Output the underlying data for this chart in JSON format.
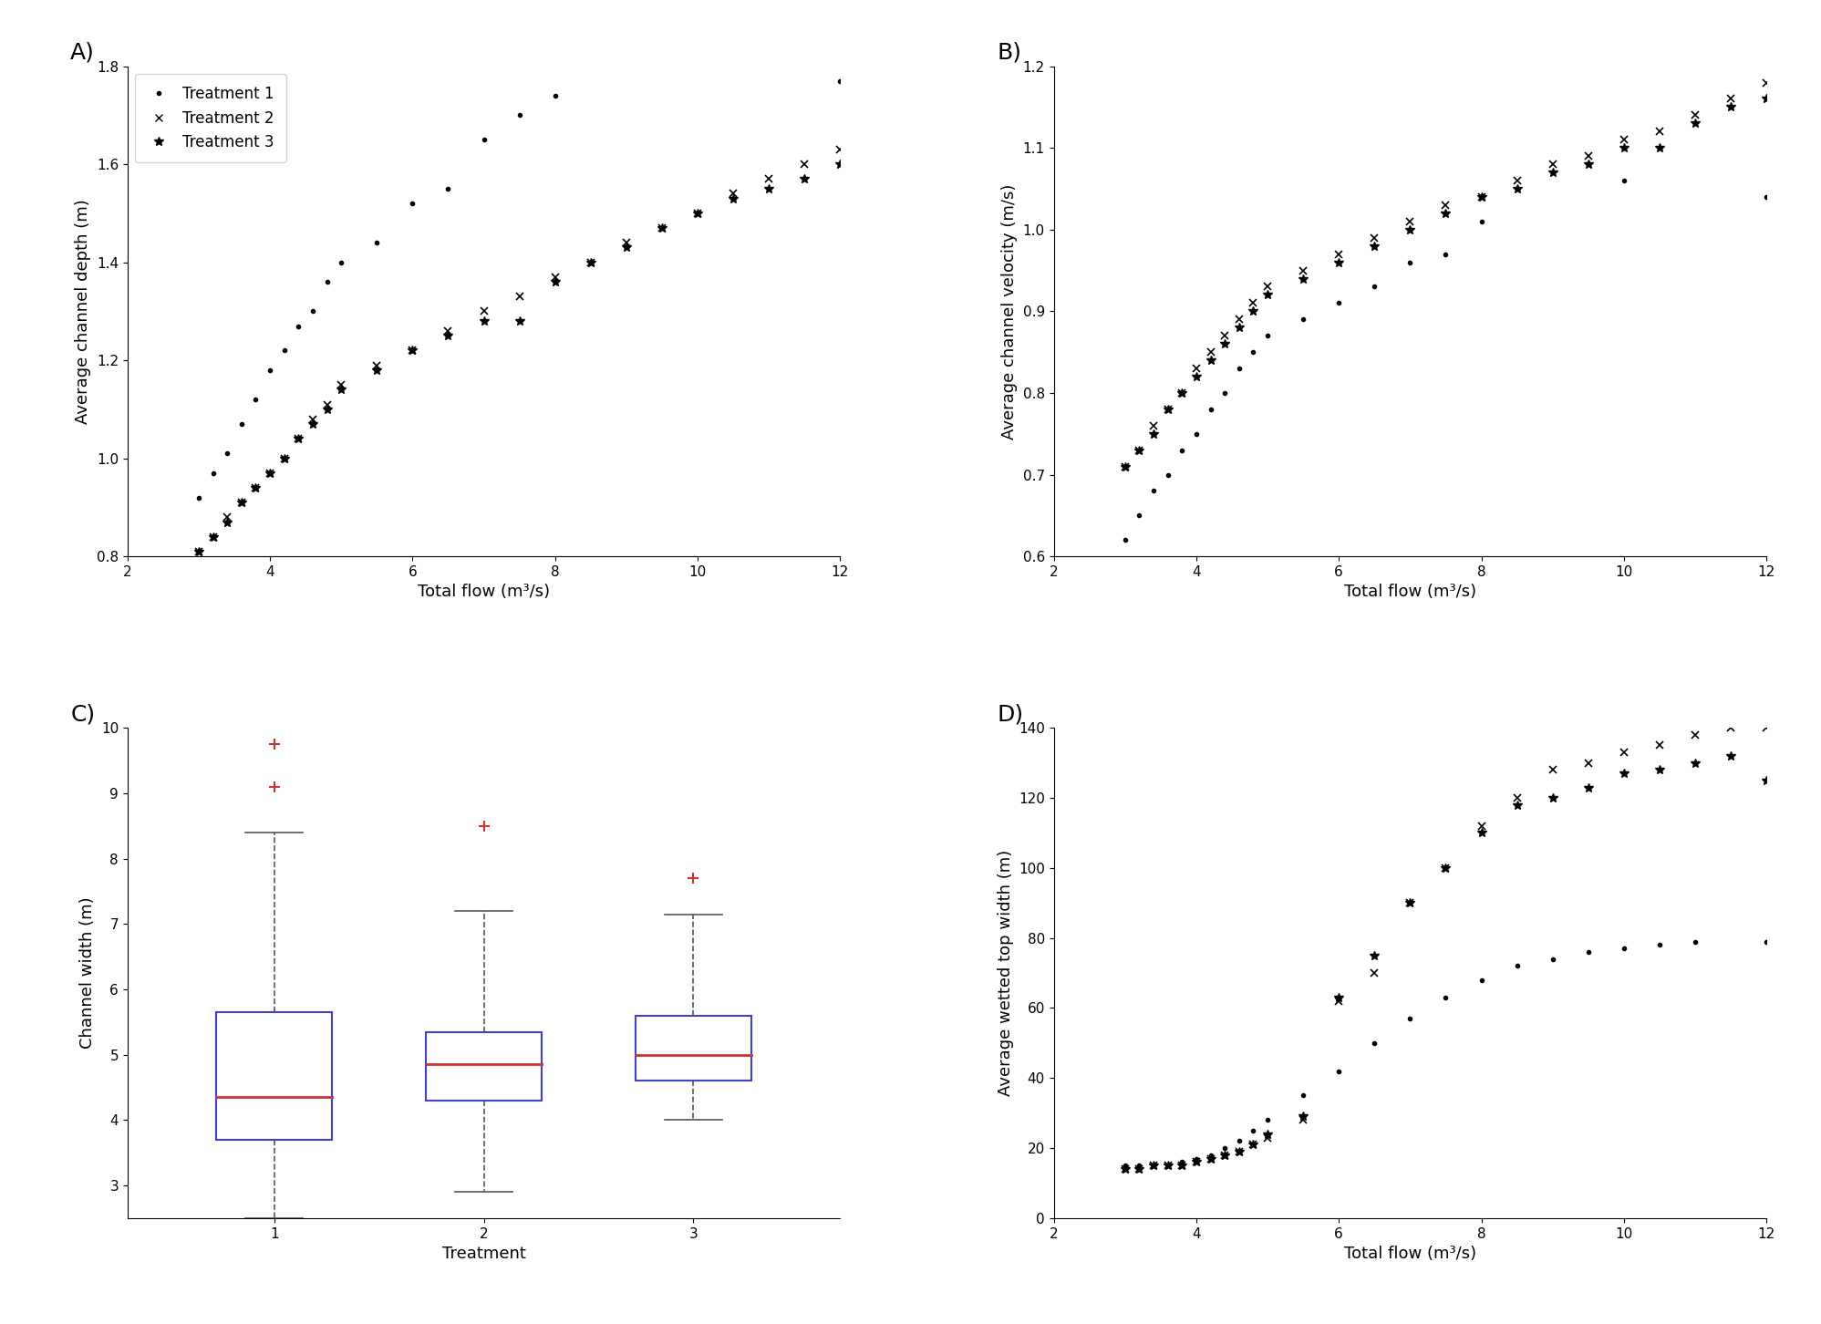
{
  "panel_labels": [
    "A)",
    "B)",
    "C)",
    "D)"
  ],
  "flow_t23": [
    3.0,
    3.2,
    3.4,
    3.6,
    3.8,
    4.0,
    4.2,
    4.4,
    4.6,
    4.8,
    5.0,
    5.5,
    6.0,
    6.5,
    7.0,
    7.5,
    8.0,
    8.5,
    9.0,
    9.5,
    10.0,
    10.5,
    11.0,
    11.5,
    12.0
  ],
  "depth_t1": [
    0.92,
    0.97,
    1.01,
    1.07,
    1.12,
    1.18,
    1.22,
    1.27,
    1.3,
    1.36,
    1.4,
    1.44,
    1.52,
    1.55,
    1.65,
    1.7,
    1.74,
    1.77
  ],
  "depth_t1_x": [
    3.0,
    3.2,
    3.4,
    3.6,
    3.8,
    4.0,
    4.2,
    4.4,
    4.6,
    4.8,
    5.0,
    5.5,
    6.0,
    6.5,
    7.0,
    7.5,
    8.0,
    12.0
  ],
  "depth_t2": [
    0.81,
    0.84,
    0.88,
    0.91,
    0.94,
    0.97,
    1.0,
    1.04,
    1.08,
    1.11,
    1.15,
    1.19,
    1.22,
    1.26,
    1.3,
    1.33,
    1.37,
    1.4,
    1.44,
    1.47,
    1.5,
    1.54,
    1.57,
    1.6,
    1.63
  ],
  "depth_t3": [
    0.81,
    0.84,
    0.87,
    0.91,
    0.94,
    0.97,
    1.0,
    1.04,
    1.07,
    1.1,
    1.14,
    1.18,
    1.22,
    1.25,
    1.28,
    1.28,
    1.36,
    1.4,
    1.43,
    1.47,
    1.5,
    1.53,
    1.55,
    1.57,
    1.6
  ],
  "vel_t1": [
    0.62,
    0.65,
    0.68,
    0.7,
    0.73,
    0.75,
    0.78,
    0.8,
    0.83,
    0.85,
    0.87,
    0.89,
    0.91,
    0.93,
    0.96,
    0.97,
    1.01,
    1.06,
    1.04
  ],
  "vel_t1_x": [
    3.0,
    3.2,
    3.4,
    3.6,
    3.8,
    4.0,
    4.2,
    4.4,
    4.6,
    4.8,
    5.0,
    5.5,
    6.0,
    6.5,
    7.0,
    7.5,
    8.0,
    10.0,
    12.0
  ],
  "vel_t2": [
    0.71,
    0.73,
    0.76,
    0.78,
    0.8,
    0.83,
    0.85,
    0.87,
    0.89,
    0.91,
    0.93,
    0.95,
    0.97,
    0.99,
    1.01,
    1.03,
    1.04,
    1.06,
    1.08,
    1.09,
    1.11,
    1.12,
    1.14,
    1.16,
    1.18
  ],
  "vel_t3": [
    0.71,
    0.73,
    0.75,
    0.78,
    0.8,
    0.82,
    0.84,
    0.86,
    0.88,
    0.9,
    0.92,
    0.94,
    0.96,
    0.98,
    1.0,
    1.02,
    1.04,
    1.05,
    1.07,
    1.08,
    1.1,
    1.1,
    1.13,
    1.15,
    1.16
  ],
  "topw_t1": [
    15,
    15,
    15,
    15,
    16,
    17,
    18,
    20,
    22,
    25,
    28,
    35,
    42,
    50,
    57,
    63,
    68,
    72,
    74,
    76,
    77,
    78,
    79,
    79
  ],
  "topw_t1_x": [
    3.0,
    3.2,
    3.4,
    3.6,
    3.8,
    4.0,
    4.2,
    4.4,
    4.6,
    4.8,
    5.0,
    5.5,
    6.0,
    6.5,
    7.0,
    7.5,
    8.0,
    8.5,
    9.0,
    9.5,
    10.0,
    10.5,
    11.0,
    12.0
  ],
  "topw_t2": [
    14,
    14,
    15,
    15,
    15,
    16,
    17,
    18,
    19,
    21,
    23,
    28,
    62,
    70,
    90,
    100,
    112,
    120,
    128,
    130,
    133,
    135,
    138,
    140,
    140
  ],
  "topw_t3": [
    14,
    14,
    15,
    15,
    15,
    16,
    17,
    18,
    19,
    21,
    24,
    29,
    63,
    75,
    90,
    100,
    110,
    118,
    120,
    123,
    127,
    128,
    130,
    132,
    125
  ],
  "topw_x": [
    3.0,
    3.2,
    3.4,
    3.6,
    3.8,
    4.0,
    4.2,
    4.4,
    4.6,
    4.8,
    5.0,
    5.5,
    6.0,
    6.5,
    7.0,
    7.5,
    8.0,
    8.5,
    9.0,
    9.5,
    10.0,
    10.5,
    11.0,
    11.5,
    12.0
  ],
  "box_t1": {
    "whisker_low": 2.5,
    "q1": 3.7,
    "median": 4.35,
    "q3": 5.65,
    "whisker_high": 8.4,
    "outliers": [
      9.1,
      9.75
    ]
  },
  "box_t2": {
    "whisker_low": 2.9,
    "q1": 4.3,
    "median": 4.85,
    "q3": 5.35,
    "whisker_high": 7.2,
    "outliers": [
      8.5
    ]
  },
  "box_t3": {
    "whisker_low": 4.0,
    "q1": 4.6,
    "median": 5.0,
    "q3": 5.6,
    "whisker_high": 7.15,
    "outliers": [
      7.7
    ]
  },
  "xlabel_flow": "Total flow (m³/s)",
  "ylabel_A": "Average channel depth (m)",
  "ylabel_B": "Average channel velocity (m/s)",
  "ylabel_C": "Channel width (m)",
  "xlabel_C": "Treatment",
  "ylabel_D": "Average wetted top width (m)",
  "legend_labels": [
    "Treatment 1",
    "Treatment 2",
    "Treatment 3"
  ],
  "marker_t1": ".",
  "marker_t2": "x",
  "marker_t3": "*",
  "color_all": "black",
  "xlim_flow": [
    2,
    12
  ],
  "ylim_A": [
    0.8,
    1.8
  ],
  "ylim_B": [
    0.6,
    1.2
  ],
  "ylim_C": [
    2.5,
    10
  ],
  "ylim_D": [
    0,
    140
  ],
  "box_color": "#4040cc",
  "median_color": "#cc3333",
  "outlier_color": "#cc3333",
  "whisker_color": "#555555"
}
